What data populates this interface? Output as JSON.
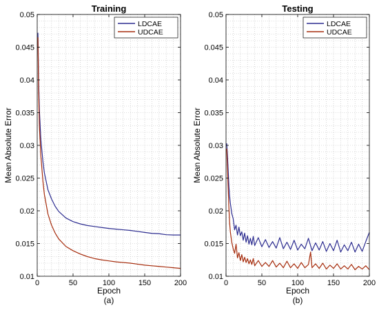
{
  "chart_data": [
    {
      "type": "line",
      "title": "Training",
      "xlabel": "Epoch",
      "ylabel": "Mean Absolute Error",
      "caption": "(a)",
      "xlim": [
        0,
        200
      ],
      "ylim": [
        0.01,
        0.05
      ],
      "xticks": [
        0,
        50,
        100,
        150,
        200
      ],
      "yticks": [
        0.01,
        0.015,
        0.02,
        0.025,
        0.03,
        0.035,
        0.04,
        0.045,
        0.05
      ],
      "ytick_labels": [
        "0.01",
        "0.015",
        "0.02",
        "0.025",
        "0.03",
        "0.035",
        "0.04",
        "0.045",
        "0.05"
      ],
      "grid": true,
      "legend_position": "top-right",
      "series": [
        {
          "name": "LDCAE",
          "color": "#2b2b8f",
          "x": [
            1,
            2,
            3,
            5,
            8,
            10,
            15,
            20,
            25,
            30,
            40,
            50,
            60,
            70,
            80,
            90,
            100,
            110,
            120,
            130,
            140,
            150,
            160,
            170,
            180,
            190,
            200
          ],
          "y": [
            0.0472,
            0.04,
            0.0355,
            0.031,
            0.0275,
            0.0258,
            0.0232,
            0.0218,
            0.0207,
            0.0199,
            0.0189,
            0.01835,
            0.018,
            0.01775,
            0.0176,
            0.01745,
            0.0173,
            0.0172,
            0.0171,
            0.017,
            0.01685,
            0.0167,
            0.01655,
            0.0165,
            0.01635,
            0.0163,
            0.0163
          ]
        },
        {
          "name": "UDCAE",
          "color": "#a52a0a",
          "x": [
            1,
            2,
            3,
            5,
            8,
            10,
            15,
            20,
            25,
            30,
            40,
            50,
            60,
            70,
            80,
            90,
            100,
            110,
            120,
            130,
            140,
            150,
            160,
            170,
            180,
            190,
            200
          ],
          "y": [
            0.0465,
            0.038,
            0.033,
            0.0285,
            0.0245,
            0.0225,
            0.0195,
            0.0178,
            0.0166,
            0.0157,
            0.01455,
            0.0139,
            0.0134,
            0.013,
            0.0127,
            0.0125,
            0.01235,
            0.0122,
            0.0121,
            0.012,
            0.01185,
            0.0117,
            0.0116,
            0.0115,
            0.0114,
            0.0113,
            0.0112
          ]
        }
      ]
    },
    {
      "type": "line",
      "title": "Testing",
      "xlabel": "Epoch",
      "ylabel": "Mean Absolute Error",
      "caption": "(b)",
      "xlim": [
        0,
        200
      ],
      "ylim": [
        0.01,
        0.05
      ],
      "xticks": [
        0,
        50,
        100,
        150,
        200
      ],
      "yticks": [
        0.01,
        0.015,
        0.02,
        0.025,
        0.03,
        0.035,
        0.04,
        0.045,
        0.05
      ],
      "ytick_labels": [
        "0.01",
        "0.015",
        "0.02",
        "0.025",
        "0.03",
        "0.035",
        "0.04",
        "0.045",
        "0.05"
      ],
      "grid": true,
      "legend_position": "top-right",
      "series": [
        {
          "name": "LDCAE",
          "color": "#2b2b8f",
          "x": [
            1,
            2,
            3,
            4,
            5,
            6,
            8,
            10,
            12,
            14,
            16,
            18,
            20,
            22,
            24,
            26,
            28,
            30,
            32,
            34,
            36,
            38,
            40,
            45,
            50,
            55,
            60,
            65,
            70,
            75,
            80,
            85,
            90,
            95,
            100,
            105,
            110,
            115,
            120,
            125,
            130,
            135,
            140,
            145,
            150,
            155,
            160,
            165,
            170,
            175,
            180,
            185,
            190,
            195,
            200
          ],
          "y": [
            0.0303,
            0.0285,
            0.0262,
            0.0238,
            0.0222,
            0.0212,
            0.0196,
            0.0188,
            0.0171,
            0.0178,
            0.0163,
            0.0175,
            0.0162,
            0.0168,
            0.0155,
            0.0166,
            0.0152,
            0.0162,
            0.0149,
            0.0158,
            0.0148,
            0.0161,
            0.0147,
            0.0159,
            0.0145,
            0.0156,
            0.0144,
            0.0153,
            0.0143,
            0.0159,
            0.0142,
            0.0152,
            0.0141,
            0.0155,
            0.014,
            0.0149,
            0.0142,
            0.0158,
            0.0139,
            0.0151,
            0.014,
            0.0153,
            0.0138,
            0.015,
            0.0139,
            0.0155,
            0.0137,
            0.0148,
            0.0139,
            0.0152,
            0.0137,
            0.0149,
            0.0138,
            0.0153,
            0.0167
          ]
        },
        {
          "name": "UDCAE",
          "color": "#a52a0a",
          "x": [
            1,
            2,
            3,
            4,
            5,
            6,
            8,
            10,
            12,
            14,
            16,
            18,
            20,
            22,
            24,
            26,
            28,
            30,
            32,
            34,
            36,
            38,
            40,
            45,
            50,
            55,
            60,
            65,
            70,
            75,
            80,
            85,
            90,
            95,
            100,
            105,
            110,
            115,
            118,
            120,
            125,
            130,
            135,
            140,
            145,
            150,
            155,
            160,
            165,
            170,
            175,
            180,
            185,
            190,
            195,
            200
          ],
          "y": [
            0.0295,
            0.0265,
            0.0235,
            0.0205,
            0.0182,
            0.0168,
            0.0152,
            0.0142,
            0.0135,
            0.0149,
            0.0128,
            0.0136,
            0.0124,
            0.0133,
            0.0122,
            0.0129,
            0.0121,
            0.0127,
            0.0119,
            0.0125,
            0.0118,
            0.0127,
            0.0116,
            0.0124,
            0.0115,
            0.0121,
            0.0115,
            0.0124,
            0.0114,
            0.012,
            0.0113,
            0.0123,
            0.0113,
            0.0119,
            0.0112,
            0.0121,
            0.0113,
            0.0118,
            0.0137,
            0.0113,
            0.0119,
            0.0112,
            0.012,
            0.0111,
            0.0117,
            0.0112,
            0.0119,
            0.0111,
            0.0116,
            0.0111,
            0.0118,
            0.011,
            0.0115,
            0.0111,
            0.0116,
            0.011
          ]
        }
      ]
    }
  ]
}
